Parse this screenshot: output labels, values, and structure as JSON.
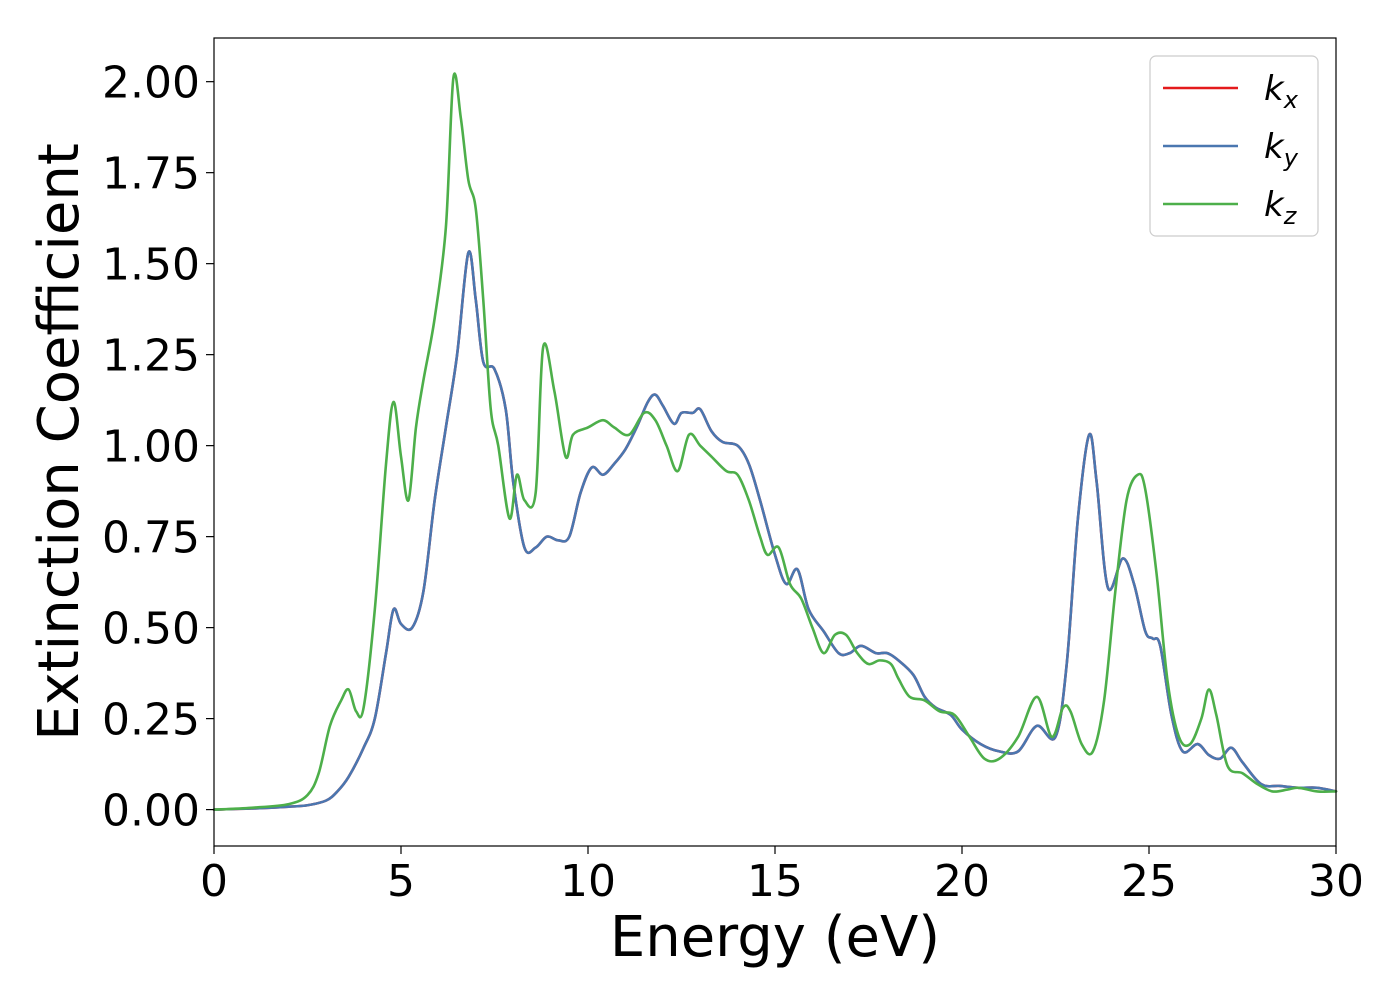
{
  "chart_data": {
    "type": "line",
    "title": "",
    "xlabel": "Energy (eV)",
    "ylabel": "Extinction Coefficient",
    "xlim": [
      0,
      30
    ],
    "ylim": [
      -0.1,
      2.12
    ],
    "xticks": [
      0,
      5,
      10,
      15,
      20,
      25,
      30
    ],
    "xtick_labels": [
      "0",
      "5",
      "10",
      "15",
      "20",
      "25",
      "30"
    ],
    "yticks": [
      0,
      0.25,
      0.5,
      0.75,
      1.0,
      1.25,
      1.5,
      1.75,
      2.0
    ],
    "ytick_labels": [
      "0.00",
      "0.25",
      "0.50",
      "0.75",
      "1.00",
      "1.25",
      "1.50",
      "1.75",
      "2.00"
    ],
    "grid": false,
    "legend_position": "top-right",
    "series": [
      {
        "name": "k_x",
        "label_main": "k",
        "label_sub": "x",
        "color": "#e41a1c",
        "x": [
          0,
          1,
          2,
          2.5,
          3,
          3.3,
          3.6,
          4,
          4.3,
          4.6,
          4.8,
          5,
          5.3,
          5.6,
          5.9,
          6.2,
          6.5,
          6.8,
          7.0,
          7.2,
          7.5,
          7.8,
          8.0,
          8.3,
          8.6,
          8.9,
          9.2,
          9.5,
          9.8,
          10.1,
          10.4,
          10.7,
          11.0,
          11.3,
          11.6,
          11.8,
          12.0,
          12.3,
          12.5,
          12.8,
          13.0,
          13.3,
          13.6,
          14.0,
          14.3,
          14.6,
          15.0,
          15.3,
          15.6,
          15.9,
          16.3,
          16.7,
          17.0,
          17.3,
          17.7,
          18.0,
          18.3,
          18.7,
          19.0,
          19.3,
          19.7,
          20.0,
          20.5,
          21.0,
          21.5,
          22.0,
          22.5,
          22.8,
          23.1,
          23.4,
          23.6,
          23.9,
          24.3,
          24.6,
          24.9,
          25.1,
          25.3,
          25.6,
          25.9,
          26.3,
          26.6,
          26.9,
          27.2,
          27.5,
          28.0,
          28.5,
          29.0,
          29.5,
          30.0
        ],
        "y": [
          0.0,
          0.003,
          0.008,
          0.012,
          0.025,
          0.05,
          0.09,
          0.17,
          0.25,
          0.43,
          0.55,
          0.51,
          0.5,
          0.6,
          0.85,
          1.05,
          1.25,
          1.53,
          1.4,
          1.23,
          1.21,
          1.1,
          0.9,
          0.72,
          0.72,
          0.75,
          0.74,
          0.75,
          0.87,
          0.94,
          0.92,
          0.95,
          0.99,
          1.05,
          1.12,
          1.14,
          1.11,
          1.06,
          1.09,
          1.09,
          1.1,
          1.04,
          1.01,
          1.0,
          0.95,
          0.85,
          0.7,
          0.62,
          0.66,
          0.55,
          0.49,
          0.43,
          0.43,
          0.45,
          0.43,
          0.43,
          0.41,
          0.37,
          0.31,
          0.28,
          0.26,
          0.22,
          0.18,
          0.16,
          0.16,
          0.23,
          0.2,
          0.4,
          0.8,
          1.03,
          0.9,
          0.61,
          0.69,
          0.62,
          0.49,
          0.47,
          0.45,
          0.26,
          0.16,
          0.18,
          0.15,
          0.14,
          0.17,
          0.13,
          0.07,
          0.065,
          0.06,
          0.06,
          0.05
        ]
      },
      {
        "name": "k_y",
        "label_main": "k",
        "label_sub": "y",
        "color": "#4a77b0",
        "x": [
          0,
          1,
          2,
          2.5,
          3,
          3.3,
          3.6,
          4,
          4.3,
          4.6,
          4.8,
          5,
          5.3,
          5.6,
          5.9,
          6.2,
          6.5,
          6.8,
          7.0,
          7.2,
          7.5,
          7.8,
          8.0,
          8.3,
          8.6,
          8.9,
          9.2,
          9.5,
          9.8,
          10.1,
          10.4,
          10.7,
          11.0,
          11.3,
          11.6,
          11.8,
          12.0,
          12.3,
          12.5,
          12.8,
          13.0,
          13.3,
          13.6,
          14.0,
          14.3,
          14.6,
          15.0,
          15.3,
          15.6,
          15.9,
          16.3,
          16.7,
          17.0,
          17.3,
          17.7,
          18.0,
          18.3,
          18.7,
          19.0,
          19.3,
          19.7,
          20.0,
          20.5,
          21.0,
          21.5,
          22.0,
          22.5,
          22.8,
          23.1,
          23.4,
          23.6,
          23.9,
          24.3,
          24.6,
          24.9,
          25.1,
          25.3,
          25.6,
          25.9,
          26.3,
          26.6,
          26.9,
          27.2,
          27.5,
          28.0,
          28.5,
          29.0,
          29.5,
          30.0
        ],
        "y": [
          0.0,
          0.003,
          0.008,
          0.012,
          0.025,
          0.05,
          0.09,
          0.17,
          0.25,
          0.43,
          0.55,
          0.51,
          0.5,
          0.6,
          0.85,
          1.05,
          1.25,
          1.53,
          1.4,
          1.23,
          1.21,
          1.1,
          0.9,
          0.72,
          0.72,
          0.75,
          0.74,
          0.75,
          0.87,
          0.94,
          0.92,
          0.95,
          0.99,
          1.05,
          1.12,
          1.14,
          1.11,
          1.06,
          1.09,
          1.09,
          1.1,
          1.04,
          1.01,
          1.0,
          0.95,
          0.85,
          0.7,
          0.62,
          0.66,
          0.55,
          0.49,
          0.43,
          0.43,
          0.45,
          0.43,
          0.43,
          0.41,
          0.37,
          0.31,
          0.28,
          0.26,
          0.22,
          0.18,
          0.16,
          0.16,
          0.23,
          0.2,
          0.4,
          0.8,
          1.03,
          0.9,
          0.61,
          0.69,
          0.62,
          0.49,
          0.47,
          0.45,
          0.26,
          0.16,
          0.18,
          0.15,
          0.14,
          0.17,
          0.13,
          0.07,
          0.065,
          0.06,
          0.06,
          0.05
        ]
      },
      {
        "name": "k_z",
        "label_main": "k",
        "label_sub": "z",
        "color": "#4daf4a",
        "x": [
          0,
          1,
          2,
          2.5,
          2.8,
          3.1,
          3.4,
          3.6,
          3.8,
          4.0,
          4.3,
          4.6,
          4.8,
          5.0,
          5.2,
          5.4,
          5.6,
          5.9,
          6.2,
          6.4,
          6.6,
          6.8,
          7.0,
          7.2,
          7.4,
          7.6,
          7.9,
          8.1,
          8.3,
          8.6,
          8.8,
          9.1,
          9.4,
          9.6,
          10.0,
          10.4,
          10.7,
          11.1,
          11.5,
          11.8,
          12.1,
          12.4,
          12.7,
          13.0,
          13.3,
          13.7,
          14.0,
          14.3,
          14.6,
          14.8,
          15.1,
          15.4,
          15.7,
          16.0,
          16.3,
          16.6,
          16.9,
          17.2,
          17.5,
          17.8,
          18.1,
          18.3,
          18.6,
          19.0,
          19.4,
          19.8,
          20.2,
          20.6,
          21.0,
          21.5,
          22.0,
          22.4,
          22.7,
          22.9,
          23.2,
          23.5,
          23.8,
          24.1,
          24.4,
          24.7,
          24.9,
          25.2,
          25.5,
          25.8,
          26.1,
          26.4,
          26.6,
          26.8,
          27.1,
          27.5,
          27.9,
          28.3,
          28.7,
          29.0,
          29.5,
          30.0
        ],
        "y": [
          0.0,
          0.005,
          0.015,
          0.04,
          0.1,
          0.23,
          0.3,
          0.33,
          0.27,
          0.28,
          0.55,
          0.95,
          1.12,
          0.97,
          0.85,
          1.05,
          1.18,
          1.35,
          1.6,
          2.01,
          1.9,
          1.73,
          1.65,
          1.4,
          1.1,
          1.0,
          0.8,
          0.92,
          0.85,
          0.87,
          1.27,
          1.15,
          0.97,
          1.03,
          1.05,
          1.07,
          1.05,
          1.03,
          1.09,
          1.07,
          1.0,
          0.93,
          1.03,
          1.0,
          0.97,
          0.93,
          0.92,
          0.85,
          0.75,
          0.7,
          0.72,
          0.62,
          0.58,
          0.5,
          0.43,
          0.48,
          0.48,
          0.43,
          0.4,
          0.41,
          0.4,
          0.36,
          0.31,
          0.3,
          0.27,
          0.26,
          0.2,
          0.14,
          0.14,
          0.2,
          0.31,
          0.2,
          0.28,
          0.27,
          0.18,
          0.16,
          0.3,
          0.6,
          0.85,
          0.92,
          0.88,
          0.65,
          0.35,
          0.2,
          0.18,
          0.25,
          0.33,
          0.26,
          0.12,
          0.1,
          0.07,
          0.05,
          0.055,
          0.06,
          0.05,
          0.05
        ]
      }
    ]
  }
}
